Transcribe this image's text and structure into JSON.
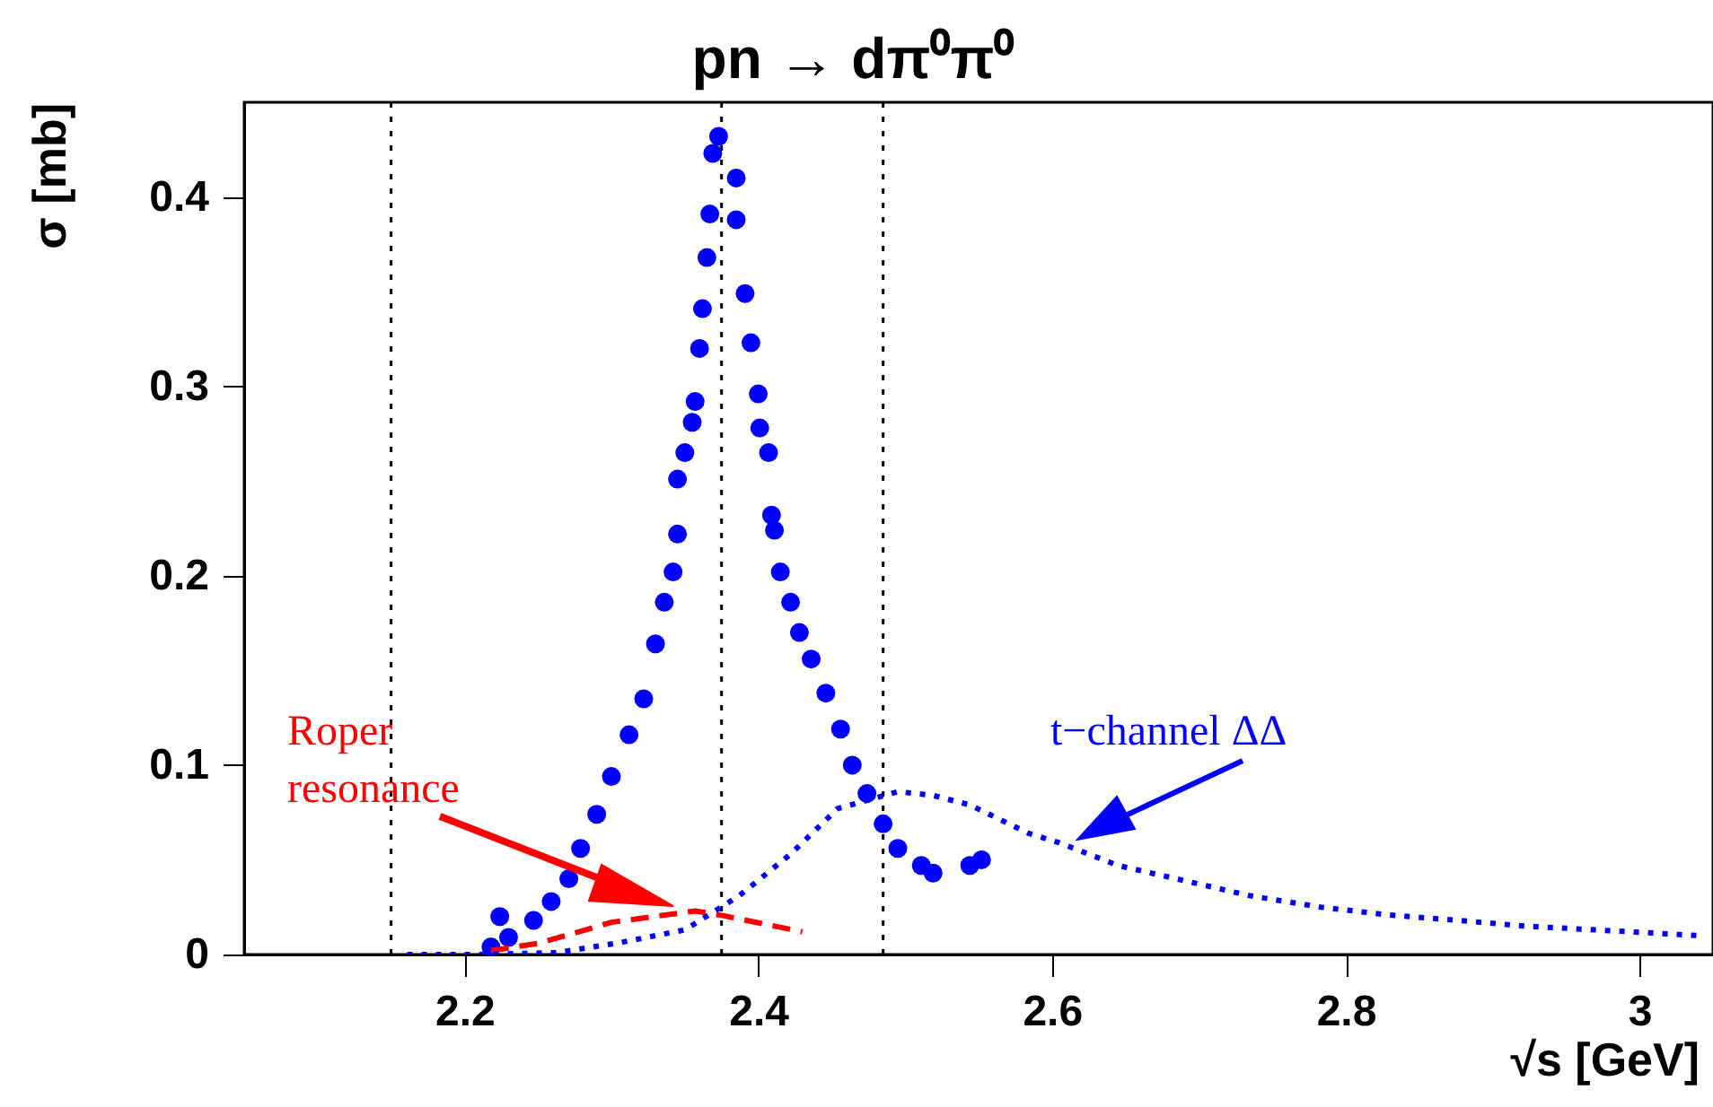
{
  "chart_data": {
    "type": "scatter",
    "title": "pn → dπ⁰π⁰",
    "xlabel": "√s [GeV]",
    "ylabel": "σ [mb]",
    "xlim": [
      2.05,
      3.05
    ],
    "xticks": [
      2.2,
      2.4,
      2.6,
      2.8,
      3
    ],
    "ylim": [
      0,
      0.45
    ],
    "yticks": [
      0,
      0.1,
      0.2,
      0.3,
      0.4
    ],
    "series": [
      {
        "marker": "circle",
        "color": "#0000ff",
        "x": [
          2.218,
          2.224,
          2.23,
          2.247,
          2.259,
          2.271,
          2.279,
          2.29,
          2.3,
          2.312,
          2.322,
          2.33,
          2.336,
          2.342,
          2.345,
          2.345,
          2.35,
          2.355,
          2.357,
          2.36,
          2.362,
          2.365,
          2.367,
          2.369,
          2.373,
          2.385,
          2.385,
          2.391,
          2.395,
          2.4,
          2.401,
          2.407,
          2.409,
          2.411,
          2.415,
          2.422,
          2.428,
          2.436,
          2.446,
          2.456,
          2.464,
          2.474,
          2.485,
          2.495,
          2.511,
          2.519,
          2.544,
          2.552
        ],
        "values": [
          0.004,
          0.02,
          0.009,
          0.018,
          0.028,
          0.04,
          0.056,
          0.074,
          0.094,
          0.116,
          0.135,
          0.164,
          0.186,
          0.202,
          0.222,
          0.251,
          0.265,
          0.281,
          0.292,
          0.32,
          0.341,
          0.368,
          0.391,
          0.423,
          0.432,
          0.41,
          0.388,
          0.349,
          0.323,
          0.296,
          0.278,
          0.265,
          0.232,
          0.224,
          0.202,
          0.186,
          0.17,
          0.156,
          0.138,
          0.119,
          0.1,
          0.085,
          0.069,
          0.056,
          0.047,
          0.043,
          0.047,
          0.05
        ]
      },
      {
        "type": "line",
        "name": "Roper resonance",
        "color": "#ff0000",
        "line_style": "dashed",
        "x": [
          2.218,
          2.251,
          2.3,
          2.357,
          2.373,
          2.43
        ],
        "values": [
          0.002,
          0.006,
          0.017,
          0.023,
          0.021,
          0.012
        ]
      },
      {
        "type": "line",
        "name": "t−channel ΔΔ",
        "color": "#0000ff",
        "line_style": "dotted",
        "x": [
          2.161,
          2.21,
          2.263,
          2.304,
          2.35,
          2.387,
          2.422,
          2.454,
          2.495,
          2.519,
          2.544,
          2.584,
          2.605,
          2.645,
          2.69,
          2.735,
          2.783,
          2.828,
          2.877,
          2.922,
          2.97,
          3.04
        ],
        "values": [
          0,
          0,
          0.001,
          0.006,
          0.013,
          0.031,
          0.053,
          0.077,
          0.086,
          0.084,
          0.079,
          0.064,
          0.059,
          0.047,
          0.039,
          0.031,
          0.025,
          0.021,
          0.018,
          0.015,
          0.013,
          0.01
        ]
      }
    ],
    "ref_lines": [
      {
        "axis": "x",
        "value": 2.15,
        "line_style": "dotted",
        "color": "#000000"
      },
      {
        "axis": "x",
        "value": 2.375,
        "line_style": "dotted",
        "color": "#000000"
      },
      {
        "axis": "x",
        "value": 2.485,
        "line_style": "dotted",
        "color": "#000000"
      }
    ]
  }
}
